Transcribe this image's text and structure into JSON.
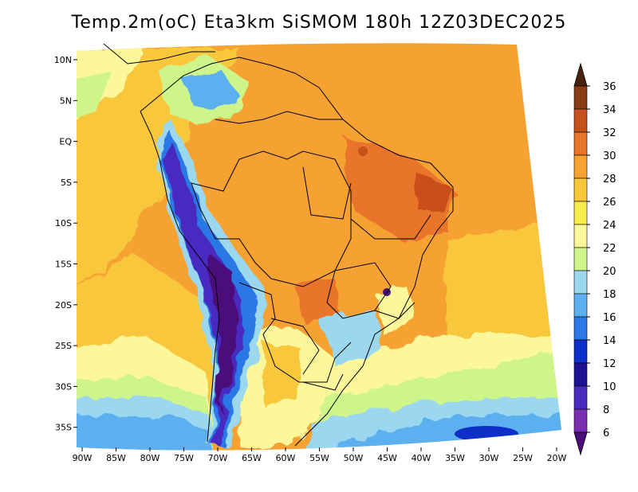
{
  "title": "Temp.2m(oC) Eta3km SiSMOM 180h 12Z03DEC2025",
  "lat_labels": [
    "10N",
    "5N",
    "EQ",
    "5S",
    "10S",
    "15S",
    "20S",
    "25S",
    "30S",
    "35S"
  ],
  "lon_labels": [
    "90W",
    "85W",
    "80W",
    "75W",
    "70W",
    "65W",
    "60W",
    "55W",
    "50W",
    "45W",
    "40W",
    "35W",
    "30W",
    "25W",
    "20W"
  ],
  "colorbar": {
    "labels": [
      "36",
      "34",
      "32",
      "30",
      "28",
      "26",
      "24",
      "22",
      "20",
      "18",
      "16",
      "14",
      "12",
      "10",
      "8",
      "6"
    ],
    "colors": [
      "#5a2b10",
      "#8a3c12",
      "#c8501a",
      "#e8742a",
      "#f5a233",
      "#f8c73a",
      "#f9ea4e",
      "#fbf79a",
      "#cdf58a",
      "#9bd8f0",
      "#5cb0f0",
      "#2c78e6",
      "#0d2fc8",
      "#1c1495",
      "#4a2bc0",
      "#7a2fb0",
      "#4b0f7a"
    ],
    "top_cap_color": "#4a2212",
    "bottom_cap_color": "#4b0f7a"
  }
}
